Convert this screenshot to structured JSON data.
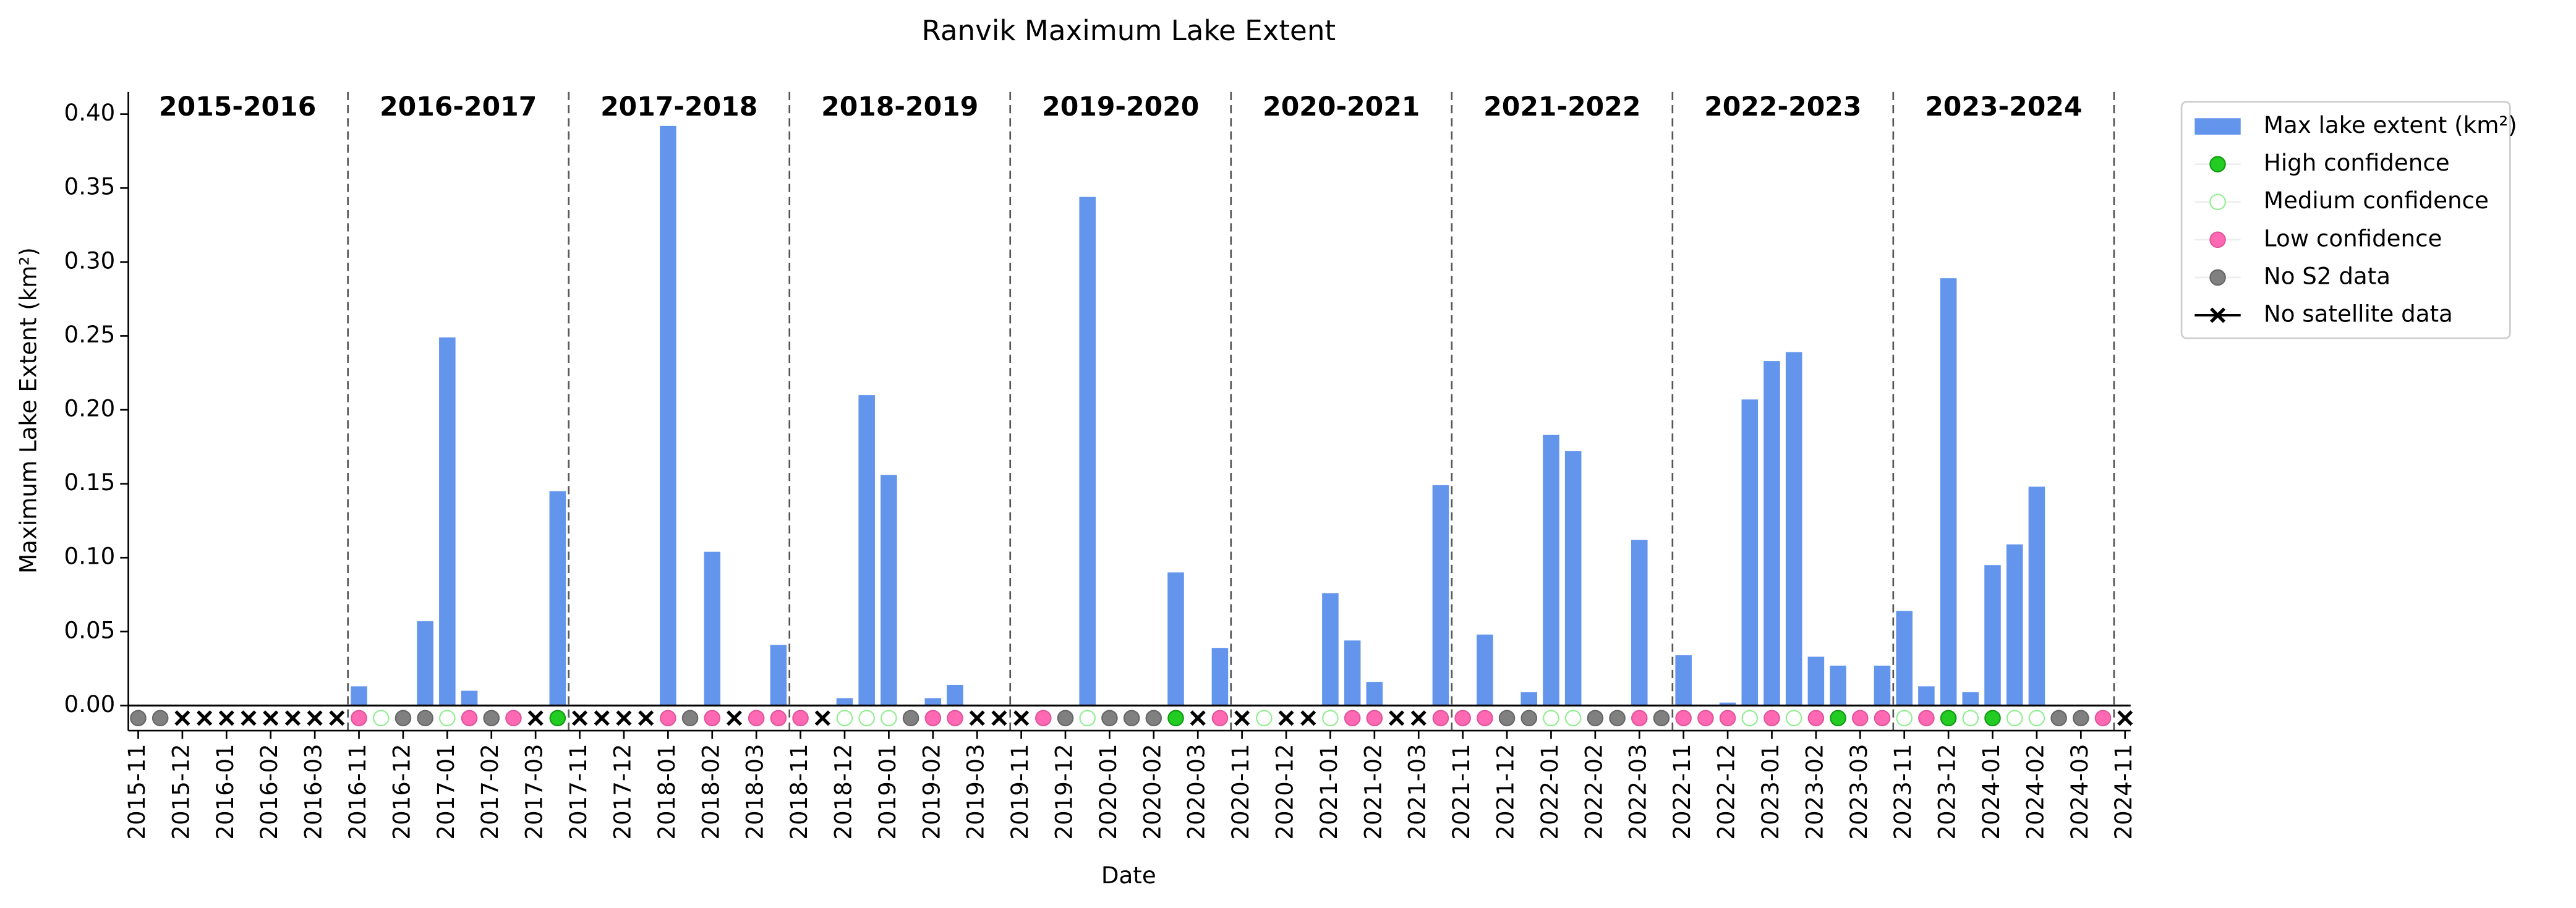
{
  "chart_data": {
    "type": "bar",
    "title": "Ranvik Maximum Lake Extent",
    "x_label": "Date",
    "y_label": "Maximum Lake Extent (km²)",
    "season_labels": [
      "2015-2016",
      "2016-2017",
      "2017-2018",
      "2018-2019",
      "2019-2020",
      "2020-2021",
      "2021-2022",
      "2022-2023",
      "2023-2024"
    ],
    "categories": [
      "2015-11",
      null,
      "2015-12",
      null,
      "2016-01",
      null,
      "2016-02",
      null,
      "2016-03",
      null,
      "2016-11",
      null,
      "2016-12",
      null,
      "2017-01",
      null,
      "2017-02",
      null,
      "2017-03",
      null,
      "2017-11",
      null,
      "2017-12",
      null,
      "2018-01",
      null,
      "2018-02",
      null,
      "2018-03",
      null,
      "2018-11",
      null,
      "2018-12",
      null,
      "2019-01",
      null,
      "2019-02",
      null,
      "2019-03",
      null,
      "2019-11",
      null,
      "2019-12",
      null,
      "2020-01",
      null,
      "2020-02",
      null,
      "2020-03",
      null,
      "2020-11",
      null,
      "2020-12",
      null,
      "2021-01",
      null,
      "2021-02",
      null,
      "2021-03",
      null,
      "2021-11",
      null,
      "2021-12",
      null,
      "2022-01",
      null,
      "2022-02",
      null,
      "2022-03",
      null,
      "2022-11",
      null,
      "2022-12",
      null,
      "2023-01",
      null,
      "2023-02",
      null,
      "2023-03",
      null,
      "2023-11",
      null,
      "2023-12",
      null,
      "2024-01",
      null,
      "2024-02",
      null,
      "2024-03",
      null,
      "2024-11"
    ],
    "values": [
      0,
      0,
      0,
      0,
      0,
      0,
      0,
      0,
      0,
      0,
      0.013,
      0,
      0,
      0.057,
      0.249,
      0.01,
      0,
      0,
      0,
      0.145,
      0,
      0,
      0,
      0,
      0.392,
      0,
      0.104,
      0,
      0,
      0.041,
      0,
      0,
      0.005,
      0.21,
      0.156,
      0,
      0.005,
      0.014,
      0,
      0,
      0,
      0,
      0,
      0.344,
      0,
      0,
      0,
      0.09,
      0,
      0.039,
      0,
      0,
      0,
      0,
      0.076,
      0.044,
      0.016,
      0,
      0,
      0.149,
      0,
      0.048,
      0,
      0.009,
      0.183,
      0.172,
      0,
      0,
      0.112,
      0,
      0.034,
      0,
      0.002,
      0.207,
      0.233,
      0.239,
      0.033,
      0.027,
      0,
      0.027,
      0.064,
      0.013,
      0.289,
      0.009,
      0.095,
      0.109,
      0.148,
      0,
      0,
      0,
      0
    ],
    "status": [
      4,
      4,
      5,
      5,
      5,
      5,
      5,
      5,
      5,
      5,
      3,
      2,
      4,
      4,
      2,
      3,
      4,
      3,
      5,
      1,
      5,
      5,
      5,
      5,
      3,
      4,
      3,
      5,
      3,
      3,
      3,
      5,
      2,
      2,
      2,
      4,
      3,
      3,
      5,
      5,
      5,
      3,
      4,
      2,
      4,
      4,
      4,
      1,
      5,
      3,
      5,
      2,
      5,
      5,
      2,
      3,
      3,
      5,
      5,
      3,
      3,
      3,
      4,
      4,
      2,
      2,
      4,
      4,
      3,
      4,
      3,
      3,
      3,
      2,
      3,
      2,
      3,
      1,
      3,
      3,
      2,
      3,
      1,
      2,
      1,
      2,
      2,
      4,
      4,
      3,
      5
    ],
    "legend": [
      {
        "name": "Max lake extent (km²)",
        "color": "#6495ed"
      },
      {
        "name": "High confidence",
        "color": "#22cc22"
      },
      {
        "name": "Medium confidence",
        "color": "#ffffff"
      },
      {
        "name": "Low confidence",
        "color": "#ff69b4"
      },
      {
        "name": "No S2 data",
        "color": "#808080"
      },
      {
        "name": "No satellite data",
        "color": "#000000"
      }
    ],
    "legend_position": "outside right",
    "ylim": [
      -0.017,
      0.415
    ],
    "yticks": [
      {
        "value": 0,
        "label": "0.00"
      },
      0.05,
      {
        "value": 0.1,
        "label": "0.10"
      },
      0.15,
      {
        "value": 0.2,
        "label": "0.20"
      },
      0.25,
      {
        "value": 0.3,
        "label": "0.30"
      },
      0.35,
      {
        "value": 0.4,
        "label": "0.40"
      }
    ]
  }
}
